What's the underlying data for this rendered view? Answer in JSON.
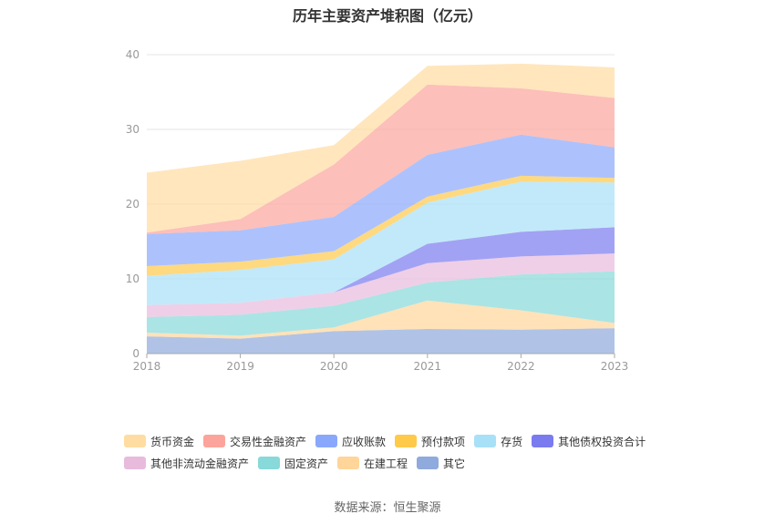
{
  "chart_data": {
    "type": "area",
    "stacked": true,
    "title": "历年主要资产堆积图（亿元）",
    "x": [
      "2018",
      "2019",
      "2020",
      "2021",
      "2022",
      "2023"
    ],
    "yticks": [
      0,
      10,
      20,
      30,
      40
    ],
    "ylim": [
      0,
      40
    ],
    "grid": true,
    "legend_position": "bottom",
    "series": [
      {
        "name": "其它",
        "color": "#8faadc",
        "values": [
          2.3,
          2.0,
          3.0,
          3.3,
          3.2,
          3.4
        ]
      },
      {
        "name": "在建工程",
        "color": "#ffd59a",
        "values": [
          0.5,
          0.4,
          0.5,
          3.8,
          2.6,
          0.7
        ]
      },
      {
        "name": "固定资产",
        "color": "#88d9d9",
        "values": [
          2.1,
          2.8,
          2.9,
          2.4,
          4.8,
          6.9
        ]
      },
      {
        "name": "其他非流动金融资产",
        "color": "#e8bbdd",
        "values": [
          1.6,
          1.6,
          1.8,
          2.6,
          2.4,
          2.4
        ]
      },
      {
        "name": "其他债权投资合计",
        "color": "#7b7bf0",
        "values": [
          0,
          0,
          0,
          2.6,
          3.3,
          3.5
        ]
      },
      {
        "name": "存货",
        "color": "#a8e0f8",
        "values": [
          3.9,
          4.4,
          4.4,
          5.5,
          6.7,
          6.0
        ]
      },
      {
        "name": "预付款项",
        "color": "#ffc94a",
        "values": [
          1.3,
          1.1,
          1.1,
          0.8,
          0.8,
          0.6
        ]
      },
      {
        "name": "应收账款",
        "color": "#8aa8fb",
        "values": [
          4.3,
          4.2,
          4.6,
          5.6,
          5.5,
          4.1
        ]
      },
      {
        "name": "交易性金融资产",
        "color": "#fca49b",
        "values": [
          0.2,
          1.5,
          7.0,
          9.4,
          6.2,
          6.6
        ]
      },
      {
        "name": "货币资金",
        "color": "#ffdca1",
        "values": [
          8.0,
          7.8,
          2.6,
          2.5,
          3.3,
          4.1
        ]
      }
    ],
    "legend_order": [
      "货币资金",
      "交易性金融资产",
      "应收账款",
      "预付款项",
      "存货",
      "其他债权投资合计",
      "其他非流动金融资产",
      "固定资产",
      "在建工程",
      "其它"
    ]
  },
  "source": "数据来源：恒生聚源"
}
